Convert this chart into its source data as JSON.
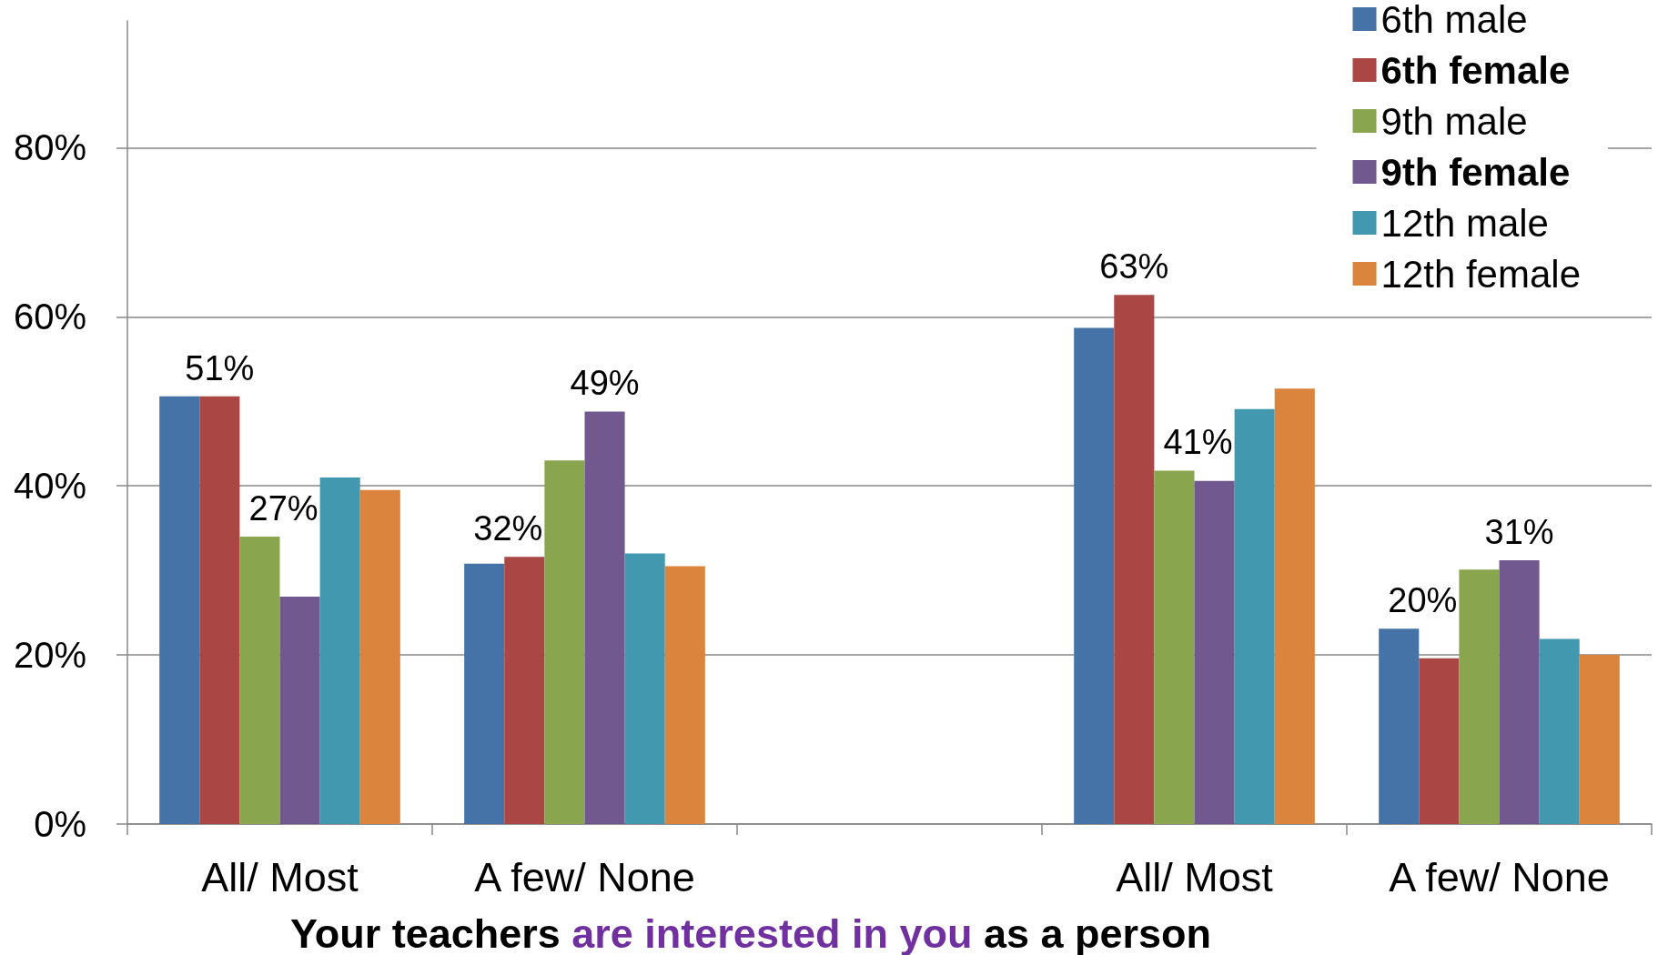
{
  "chart_data": {
    "type": "bar",
    "xlabel": "Your teachers are interested in you as a person",
    "categories": [
      "All/ Most",
      "A few/ None",
      null,
      "All/ Most",
      "A few/ None"
    ],
    "series": [
      {
        "name": "6th male",
        "color": "#4572a7",
        "values": [
          50.6,
          30.8,
          null,
          58.7,
          23.1
        ]
      },
      {
        "name": "6th female",
        "color": "#aa4643",
        "values": [
          50.6,
          31.6,
          null,
          62.6,
          19.6
        ],
        "value_labels": [
          "51%",
          "32%",
          null,
          "63%",
          "20%"
        ]
      },
      {
        "name": "9th male",
        "color": "#89a54e",
        "values": [
          34,
          43,
          null,
          41.8,
          30.1
        ]
      },
      {
        "name": "9th female",
        "color": "#71588f",
        "values": [
          26.9,
          48.8,
          null,
          40.6,
          31.2
        ],
        "value_labels": [
          "27%",
          "49%",
          null,
          "41%",
          "31%"
        ]
      },
      {
        "name": "12th male",
        "color": "#4198af",
        "values": [
          41,
          32,
          null,
          49.1,
          21.9
        ]
      },
      {
        "name": "12th female",
        "color": "#db843d",
        "values": [
          39.5,
          30.5,
          null,
          51.5,
          20
        ]
      }
    ],
    "ylim": [
      0,
      95
    ],
    "yticks": [
      {
        "value": 0,
        "label": "0%"
      },
      {
        "value": 20,
        "label": "20%"
      },
      {
        "value": 40,
        "label": "40%"
      },
      {
        "value": 60,
        "label": "60%"
      },
      {
        "value": 80,
        "label": "80%"
      }
    ],
    "grid": "y",
    "legend": "top right"
  }
}
